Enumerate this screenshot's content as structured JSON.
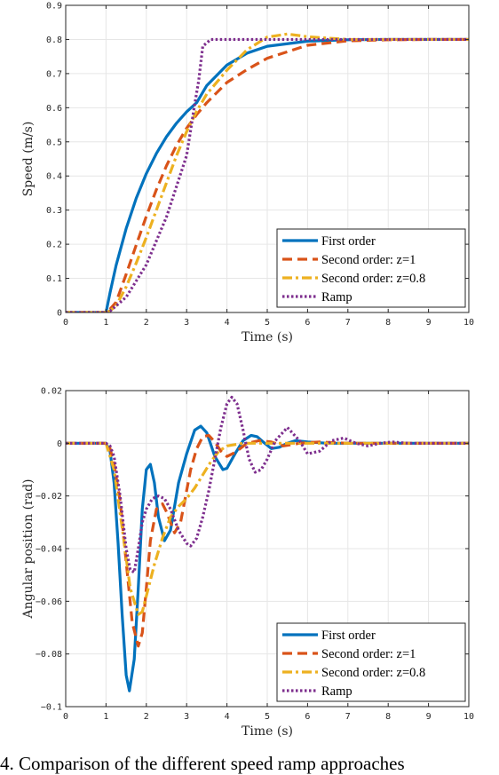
{
  "caption": "4. Comparison of the different speed ramp approaches",
  "colors": {
    "first_order": "#0072BD",
    "second_order_z1": "#D95319",
    "second_order_z08": "#EDB120",
    "ramp": "#7E2F8E"
  },
  "chart_data": [
    {
      "type": "line",
      "xlabel": "Time (s)",
      "ylabel": "Speed (m/s)",
      "xlim": [
        0,
        10
      ],
      "ylim": [
        0,
        0.9
      ],
      "xticks": [
        0,
        1,
        2,
        3,
        4,
        5,
        6,
        7,
        8,
        9,
        10
      ],
      "yticks": [
        0,
        0.1,
        0.2,
        0.3,
        0.4,
        0.5,
        0.6,
        0.7,
        0.8,
        0.9
      ],
      "grid": true,
      "legend_position": "bottom-right",
      "series": [
        {
          "name": "First order",
          "style": "solid",
          "x": [
            0,
            1,
            1.1,
            1.25,
            1.5,
            1.75,
            2,
            2.25,
            2.5,
            2.75,
            3,
            3.25,
            3.5,
            4,
            4.5,
            5,
            6,
            7,
            8,
            9,
            10
          ],
          "y": [
            0,
            0,
            0.058,
            0.138,
            0.246,
            0.335,
            0.407,
            0.466,
            0.515,
            0.555,
            0.588,
            0.615,
            0.665,
            0.725,
            0.76,
            0.78,
            0.795,
            0.799,
            0.8,
            0.8,
            0.8
          ]
        },
        {
          "name": "Second order: z=1",
          "style": "dashed",
          "x": [
            0,
            1,
            1.1,
            1.25,
            1.5,
            1.75,
            2,
            2.25,
            2.5,
            2.75,
            3,
            3.25,
            3.5,
            4,
            4.5,
            5,
            6,
            7,
            8,
            9,
            10
          ],
          "y": [
            0,
            0,
            0.01,
            0.03,
            0.112,
            0.198,
            0.282,
            0.36,
            0.43,
            0.49,
            0.54,
            0.58,
            0.615,
            0.674,
            0.712,
            0.745,
            0.783,
            0.796,
            0.799,
            0.8,
            0.8
          ]
        },
        {
          "name": "Second order: z=0.8",
          "style": "dashdot",
          "x": [
            0,
            1,
            1.1,
            1.25,
            1.5,
            1.75,
            2,
            2.25,
            2.5,
            2.75,
            3,
            3.25,
            3.5,
            4,
            4.5,
            5,
            5.5,
            6,
            7,
            8,
            9,
            10
          ],
          "y": [
            0,
            0,
            0.005,
            0.02,
            0.075,
            0.145,
            0.22,
            0.3,
            0.38,
            0.46,
            0.53,
            0.59,
            0.64,
            0.71,
            0.77,
            0.807,
            0.816,
            0.808,
            0.8,
            0.8,
            0.8,
            0.8
          ]
        },
        {
          "name": "Ramp",
          "style": "dotted",
          "x": [
            0,
            1,
            1.1,
            1.5,
            2,
            2.5,
            3,
            3.2,
            3.3,
            3.4,
            3.6,
            3.8,
            4,
            4.5,
            5,
            6,
            7,
            8,
            9,
            10
          ],
          "y": [
            0,
            0,
            0.004,
            0.045,
            0.14,
            0.28,
            0.46,
            0.61,
            0.68,
            0.78,
            0.8,
            0.8,
            0.8,
            0.8,
            0.8,
            0.8,
            0.8,
            0.8,
            0.8,
            0.8
          ]
        }
      ]
    },
    {
      "type": "line",
      "xlabel": "Time (s)",
      "ylabel": "Angular position (rad)",
      "xlim": [
        0,
        10
      ],
      "ylim": [
        -0.1,
        0.02
      ],
      "xticks": [
        0,
        1,
        2,
        3,
        4,
        5,
        6,
        7,
        8,
        9,
        10
      ],
      "yticks": [
        -0.1,
        -0.08,
        -0.06,
        -0.04,
        -0.02,
        0,
        0.02
      ],
      "grid": true,
      "legend_position": "bottom-right",
      "series": [
        {
          "name": "First order",
          "style": "solid",
          "x": [
            0,
            1,
            1.1,
            1.2,
            1.3,
            1.4,
            1.5,
            1.58,
            1.7,
            1.8,
            1.9,
            2.0,
            2.1,
            2.2,
            2.3,
            2.45,
            2.6,
            2.7,
            2.8,
            3.0,
            3.2,
            3.35,
            3.5,
            3.7,
            3.9,
            4.0,
            4.2,
            4.4,
            4.6,
            4.75,
            4.9,
            5.1,
            5.3,
            5.5,
            5.7,
            6,
            6.5,
            7,
            8,
            10
          ],
          "y": [
            0,
            0,
            -0.003,
            -0.015,
            -0.038,
            -0.065,
            -0.088,
            -0.094,
            -0.082,
            -0.055,
            -0.025,
            -0.01,
            -0.008,
            -0.015,
            -0.028,
            -0.037,
            -0.033,
            -0.024,
            -0.015,
            -0.004,
            0.005,
            0.0065,
            0.004,
            -0.005,
            -0.01,
            -0.0095,
            -0.004,
            0.001,
            0.003,
            0.0025,
            0.0005,
            -0.002,
            -0.0015,
            0,
            0.001,
            0.0005,
            0,
            0,
            0,
            0
          ]
        },
        {
          "name": "Second order: z=1",
          "style": "dashed",
          "x": [
            0,
            1,
            1.1,
            1.2,
            1.35,
            1.5,
            1.65,
            1.8,
            1.9,
            2.0,
            2.1,
            2.25,
            2.4,
            2.5,
            2.6,
            2.7,
            2.85,
            3.0,
            3.1,
            3.25,
            3.4,
            3.55,
            3.7,
            3.85,
            4.0,
            4.2,
            4.5,
            4.8,
            5.1,
            5.4,
            5.8,
            6.3,
            7,
            8,
            10
          ],
          "y": [
            0,
            0,
            -0.002,
            -0.008,
            -0.022,
            -0.045,
            -0.068,
            -0.077,
            -0.072,
            -0.055,
            -0.037,
            -0.025,
            -0.023,
            -0.026,
            -0.03,
            -0.034,
            -0.03,
            -0.018,
            -0.01,
            -0.002,
            0.0025,
            0.003,
            0.0005,
            -0.003,
            -0.005,
            -0.0035,
            0,
            0.001,
            0.0005,
            -0.001,
            0,
            0.0005,
            0,
            0,
            0
          ]
        },
        {
          "name": "Second order: z=0.8",
          "style": "dashdot",
          "x": [
            0,
            1,
            1.2,
            1.4,
            1.6,
            1.8,
            1.9,
            2.0,
            2.2,
            2.4,
            2.6,
            2.8,
            3.0,
            3.2,
            3.4,
            3.6,
            3.8,
            4.0,
            4.4,
            4.8,
            5.2,
            6,
            7,
            10
          ],
          "y": [
            0,
            0,
            -0.01,
            -0.032,
            -0.055,
            -0.065,
            -0.064,
            -0.058,
            -0.046,
            -0.036,
            -0.028,
            -0.024,
            -0.021,
            -0.017,
            -0.012,
            -0.007,
            -0.003,
            -0.001,
            0,
            0,
            0,
            0,
            0,
            0
          ]
        },
        {
          "name": "Ramp",
          "style": "dotted",
          "x": [
            0,
            1,
            1.1,
            1.2,
            1.35,
            1.5,
            1.6,
            1.7,
            1.8,
            1.9,
            2.0,
            2.15,
            2.3,
            2.45,
            2.6,
            2.8,
            3.0,
            3.1,
            3.25,
            3.4,
            3.55,
            3.7,
            3.85,
            4.0,
            4.12,
            4.25,
            4.4,
            4.55,
            4.7,
            4.85,
            5.0,
            5.2,
            5.5,
            5.8,
            6.0,
            6.3,
            6.6,
            6.9,
            7.2,
            7.5,
            7.8,
            8.1,
            8.5,
            9,
            10
          ],
          "y": [
            0,
            0,
            -0.001,
            -0.005,
            -0.02,
            -0.04,
            -0.048,
            -0.049,
            -0.04,
            -0.03,
            -0.025,
            -0.021,
            -0.02,
            -0.021,
            -0.025,
            -0.033,
            -0.038,
            -0.039,
            -0.036,
            -0.028,
            -0.018,
            -0.006,
            0.006,
            0.015,
            0.0175,
            0.015,
            0.005,
            -0.006,
            -0.011,
            -0.01,
            -0.006,
            0.001,
            0.006,
            0.001,
            -0.004,
            -0.003,
            0.001,
            0.002,
            0,
            -0.001,
            0,
            0.0005,
            0,
            0,
            0
          ]
        }
      ]
    }
  ]
}
